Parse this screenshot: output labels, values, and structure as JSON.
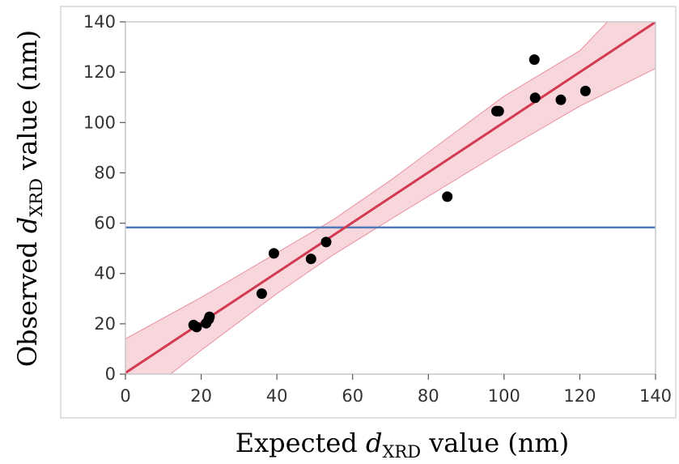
{
  "chart_data": {
    "type": "scatter",
    "xlabel": {
      "prefix": "Expected ",
      "var": "d",
      "sub": "XRD",
      "suffix": " value (nm)"
    },
    "ylabel": {
      "prefix": "Observed ",
      "var": "d",
      "sub": "XRD",
      "suffix": " value (nm)"
    },
    "xlim": [
      0,
      140
    ],
    "ylim": [
      0,
      140
    ],
    "xticks": [
      "0",
      "20",
      "40",
      "60",
      "80",
      "100",
      "120",
      "140"
    ],
    "yticks": [
      "0",
      "20",
      "40",
      "60",
      "80",
      "100",
      "120",
      "140"
    ],
    "grid": false,
    "legend": "none",
    "points": [
      {
        "x": 18,
        "y": 19.5
      },
      {
        "x": 18.8,
        "y": 18.7
      },
      {
        "x": 21.3,
        "y": 20.2
      },
      {
        "x": 22,
        "y": 21.8
      },
      {
        "x": 22.2,
        "y": 22.8
      },
      {
        "x": 36,
        "y": 32
      },
      {
        "x": 39.2,
        "y": 48
      },
      {
        "x": 49,
        "y": 45.8
      },
      {
        "x": 53,
        "y": 52.5
      },
      {
        "x": 85,
        "y": 70.5
      },
      {
        "x": 98,
        "y": 104.5
      },
      {
        "x": 98.6,
        "y": 104.5
      },
      {
        "x": 108,
        "y": 125
      },
      {
        "x": 108.2,
        "y": 109.8
      },
      {
        "x": 115,
        "y": 109
      },
      {
        "x": 121.5,
        "y": 112.5
      }
    ],
    "fit_line": {
      "intercept": 0.5,
      "slope": 0.996,
      "color": "#d23a52"
    },
    "confidence_band": {
      "x": [
        0,
        20,
        40,
        55,
        70,
        100,
        120,
        140
      ],
      "lower": [
        -14,
        9.5,
        32,
        47.5,
        61.5,
        89,
        106.5,
        121.5
      ],
      "upper": [
        14,
        30.5,
        48.2,
        61.5,
        77,
        110.5,
        128.5,
        160
      ],
      "color": "#f2b6c0"
    },
    "mean_line": {
      "y": 58.3,
      "color": "#4f79bd"
    },
    "point_color": "#000000"
  }
}
